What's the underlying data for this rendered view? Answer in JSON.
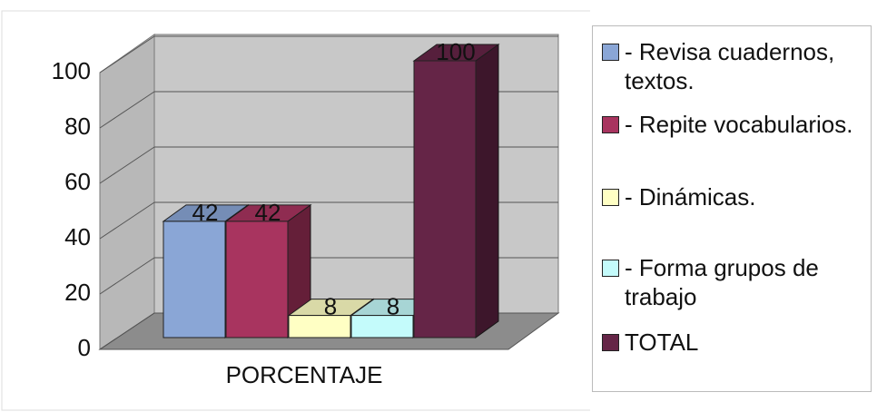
{
  "chart_data": {
    "type": "bar3d",
    "categories": [
      "PORCENTAJE"
    ],
    "series": [
      {
        "name": "- Revisa cuadernos, textos.",
        "color": "#8aa6d6",
        "values": [
          42
        ]
      },
      {
        "name": "- Repite vocabularios.",
        "color": "#a8345f",
        "values": [
          42
        ]
      },
      {
        "name": "- Dinámicas.",
        "color": "#ffffc4",
        "values": [
          8
        ]
      },
      {
        "name": "- Forma grupos de trabajo",
        "color": "#c4fbfb",
        "values": [
          8
        ]
      },
      {
        "name": "TOTAL",
        "color": "#652547",
        "values": [
          100
        ]
      }
    ],
    "ylim": [
      0,
      100
    ],
    "yticks": [
      0,
      20,
      40,
      60,
      80,
      100
    ],
    "grid": true
  }
}
